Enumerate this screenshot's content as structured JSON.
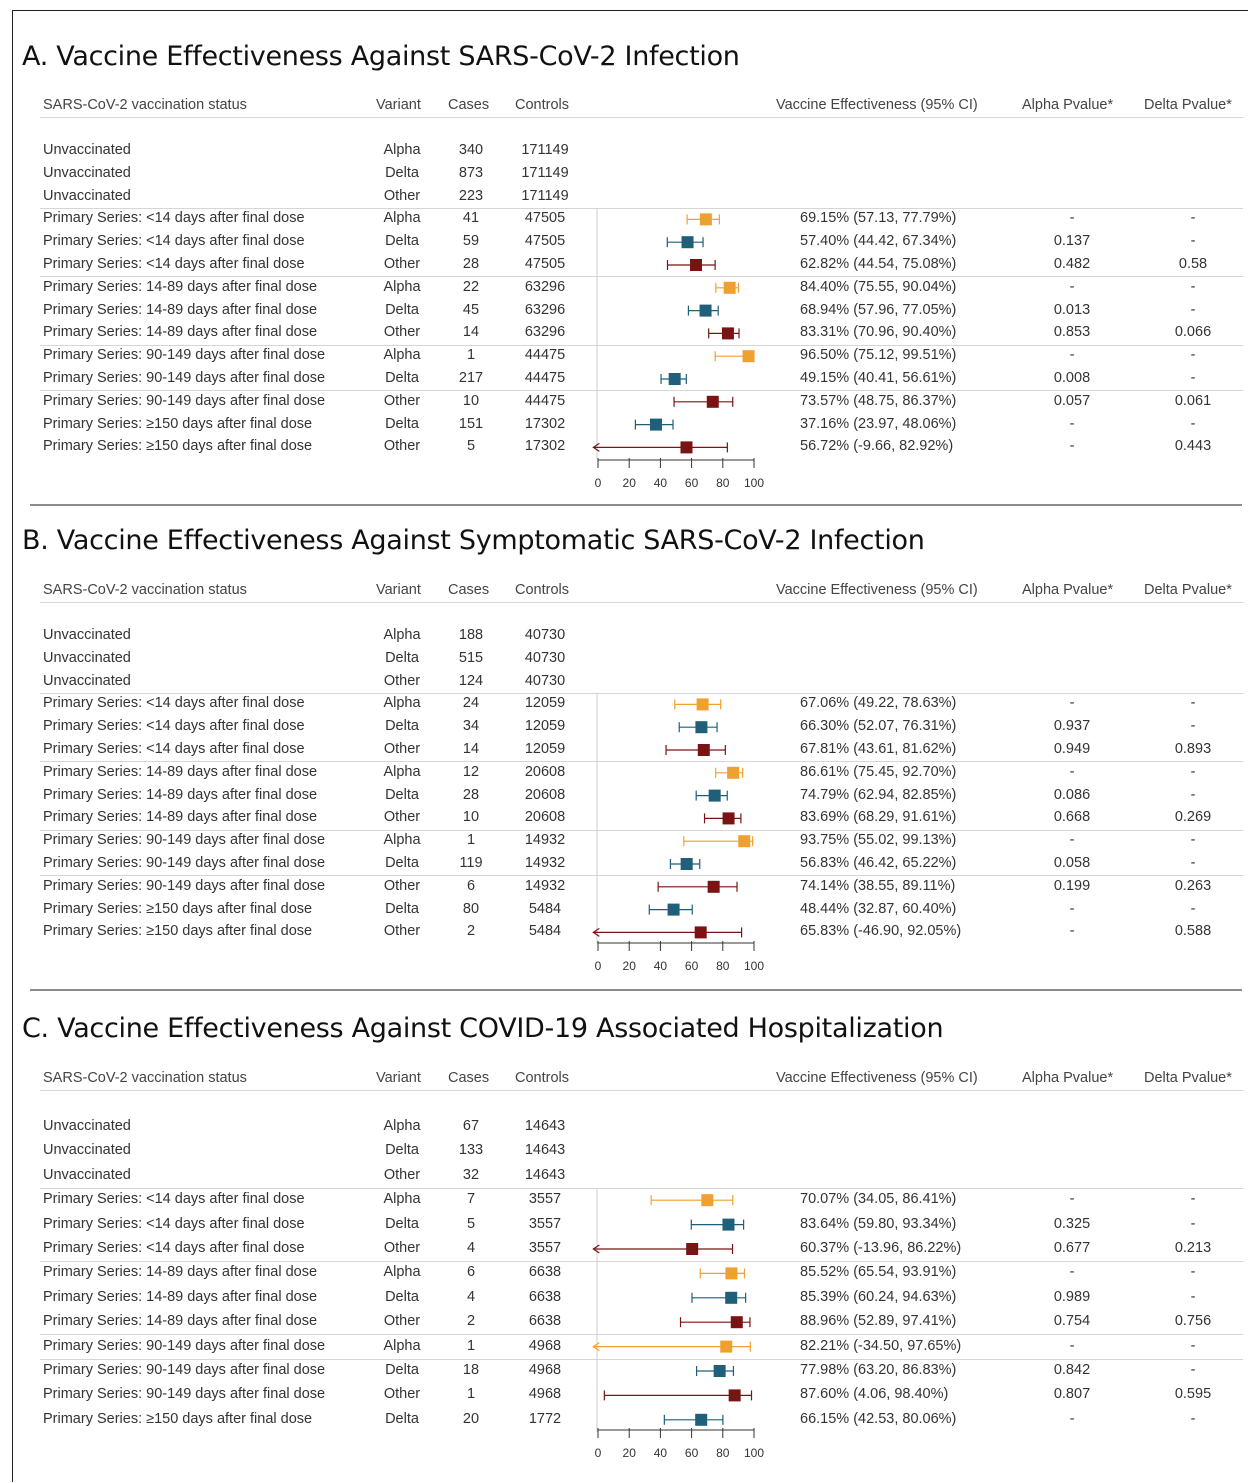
{
  "colors": {
    "Alpha": "#f0a030",
    "Delta": "#1f5f7a",
    "Other": "#7a1414",
    "axis": "#333333"
  },
  "headers": {
    "status": "SARS-CoV-2 vaccination status",
    "variant": "Variant",
    "cases": "Cases",
    "controls": "Controls",
    "ve": "Vaccine Effectiveness (95% CI)",
    "alpha_p": "Alpha Pvalue*",
    "delta_p": "Delta Pvalue*"
  },
  "panels": [
    {
      "title": "A. Vaccine Effectiveness Against SARS-CoV-2 Infection",
      "rows": [
        {
          "status": "Unvaccinated",
          "variant": "Alpha",
          "cases": "340",
          "controls": "171149",
          "ve": "",
          "pa": "",
          "pd": ""
        },
        {
          "status": "Unvaccinated",
          "variant": "Delta",
          "cases": "873",
          "controls": "171149",
          "ve": "",
          "pa": "",
          "pd": ""
        },
        {
          "status": "Unvaccinated",
          "variant": "Other",
          "cases": "223",
          "controls": "171149",
          "ve": "",
          "pa": "",
          "pd": ""
        },
        {
          "status": "Primary Series: <14 days after final dose",
          "variant": "Alpha",
          "cases": "41",
          "controls": "47505",
          "ve": "69.15% (57.13, 77.79%)",
          "pa": "-",
          "pd": "-"
        },
        {
          "status": "Primary Series: <14 days after final dose",
          "variant": "Delta",
          "cases": "59",
          "controls": "47505",
          "ve": "57.40% (44.42, 67.34%)",
          "pa": "0.137",
          "pd": "-"
        },
        {
          "status": "Primary Series: <14 days after final dose",
          "variant": "Other",
          "cases": "28",
          "controls": "47505",
          "ve": "62.82% (44.54, 75.08%)",
          "pa": "0.482",
          "pd": "0.58"
        },
        {
          "status": "Primary Series: 14-89 days after final dose",
          "variant": "Alpha",
          "cases": "22",
          "controls": "63296",
          "ve": "84.40% (75.55, 90.04%)",
          "pa": "-",
          "pd": "-"
        },
        {
          "status": "Primary Series: 14-89 days after final dose",
          "variant": "Delta",
          "cases": "45",
          "controls": "63296",
          "ve": "68.94% (57.96, 77.05%)",
          "pa": "0.013",
          "pd": "-"
        },
        {
          "status": "Primary Series: 14-89 days after final dose",
          "variant": "Other",
          "cases": "14",
          "controls": "63296",
          "ve": "83.31% (70.96, 90.40%)",
          "pa": "0.853",
          "pd": "0.066"
        },
        {
          "status": "Primary Series: 90-149 days after final dose",
          "variant": "Alpha",
          "cases": "1",
          "controls": "44475",
          "ve": "96.50% (75.12, 99.51%)",
          "pa": "-",
          "pd": "-"
        },
        {
          "status": "Primary Series: 90-149 days after final dose",
          "variant": "Delta",
          "cases": "217",
          "controls": "44475",
          "ve": "49.15% (40.41, 56.61%)",
          "pa": "0.008",
          "pd": "-"
        },
        {
          "status": "Primary Series: 90-149 days after final dose",
          "variant": "Other",
          "cases": "10",
          "controls": "44475",
          "ve": "73.57% (48.75, 86.37%)",
          "pa": "0.057",
          "pd": "0.061"
        },
        {
          "status": "Primary Series: ≥150 days after final dose",
          "variant": "Delta",
          "cases": "151",
          "controls": "17302",
          "ve": "37.16% (23.97, 48.06%)",
          "pa": "-",
          "pd": "-"
        },
        {
          "status": "Primary Series: ≥150 days after final dose",
          "variant": "Other",
          "cases": "5",
          "controls": "17302",
          "ve": "56.72% (-9.66, 82.92%)",
          "pa": "-",
          "pd": "0.443"
        }
      ]
    },
    {
      "title": "B. Vaccine Effectiveness Against Symptomatic SARS-CoV-2 Infection",
      "rows": [
        {
          "status": "Unvaccinated",
          "variant": "Alpha",
          "cases": "188",
          "controls": "40730",
          "ve": "",
          "pa": "",
          "pd": ""
        },
        {
          "status": "Unvaccinated",
          "variant": "Delta",
          "cases": "515",
          "controls": "40730",
          "ve": "",
          "pa": "",
          "pd": ""
        },
        {
          "status": "Unvaccinated",
          "variant": "Other",
          "cases": "124",
          "controls": "40730",
          "ve": "",
          "pa": "",
          "pd": ""
        },
        {
          "status": "Primary Series: <14 days after final dose",
          "variant": "Alpha",
          "cases": "24",
          "controls": "12059",
          "ve": "67.06% (49.22, 78.63%)",
          "pa": "-",
          "pd": "-"
        },
        {
          "status": "Primary Series: <14 days after final dose",
          "variant": "Delta",
          "cases": "34",
          "controls": "12059",
          "ve": "66.30% (52.07, 76.31%)",
          "pa": "0.937",
          "pd": "-"
        },
        {
          "status": "Primary Series: <14 days after final dose",
          "variant": "Other",
          "cases": "14",
          "controls": "12059",
          "ve": "67.81% (43.61, 81.62%)",
          "pa": "0.949",
          "pd": "0.893"
        },
        {
          "status": "Primary Series: 14-89 days after final dose",
          "variant": "Alpha",
          "cases": "12",
          "controls": "20608",
          "ve": "86.61% (75.45, 92.70%)",
          "pa": "-",
          "pd": "-"
        },
        {
          "status": "Primary Series: 14-89 days after final dose",
          "variant": "Delta",
          "cases": "28",
          "controls": "20608",
          "ve": "74.79% (62.94, 82.85%)",
          "pa": "0.086",
          "pd": "-"
        },
        {
          "status": "Primary Series: 14-89 days after final dose",
          "variant": "Other",
          "cases": "10",
          "controls": "20608",
          "ve": "83.69% (68.29, 91.61%)",
          "pa": "0.668",
          "pd": "0.269"
        },
        {
          "status": "Primary Series: 90-149 days after final dose",
          "variant": "Alpha",
          "cases": "1",
          "controls": "14932",
          "ve": "93.75% (55.02, 99.13%)",
          "pa": "-",
          "pd": "-"
        },
        {
          "status": "Primary Series: 90-149 days after final dose",
          "variant": "Delta",
          "cases": "119",
          "controls": "14932",
          "ve": "56.83% (46.42, 65.22%)",
          "pa": "0.058",
          "pd": "-"
        },
        {
          "status": "Primary Series: 90-149 days after final dose",
          "variant": "Other",
          "cases": "6",
          "controls": "14932",
          "ve": "74.14% (38.55, 89.11%)",
          "pa": "0.199",
          "pd": "0.263"
        },
        {
          "status": "Primary Series: ≥150 days after final dose",
          "variant": "Delta",
          "cases": "80",
          "controls": "5484",
          "ve": "48.44% (32.87, 60.40%)",
          "pa": "-",
          "pd": "-"
        },
        {
          "status": "Primary Series: ≥150 days after final dose",
          "variant": "Other",
          "cases": "2",
          "controls": "5484",
          "ve": "65.83% (-46.90, 92.05%)",
          "pa": "-",
          "pd": "0.588"
        }
      ]
    },
    {
      "title": "C. Vaccine Effectiveness Against COVID-19 Associated Hospitalization",
      "rows": [
        {
          "status": "Unvaccinated",
          "variant": "Alpha",
          "cases": "67",
          "controls": "14643",
          "ve": "",
          "pa": "",
          "pd": ""
        },
        {
          "status": "Unvaccinated",
          "variant": "Delta",
          "cases": "133",
          "controls": "14643",
          "ve": "",
          "pa": "",
          "pd": ""
        },
        {
          "status": "Unvaccinated",
          "variant": "Other",
          "cases": "32",
          "controls": "14643",
          "ve": "",
          "pa": "",
          "pd": ""
        },
        {
          "status": "Primary Series: <14 days after final dose",
          "variant": "Alpha",
          "cases": "7",
          "controls": "3557",
          "ve": "70.07% (34.05, 86.41%)",
          "pa": "-",
          "pd": "-"
        },
        {
          "status": "Primary Series: <14 days after final dose",
          "variant": "Delta",
          "cases": "5",
          "controls": "3557",
          "ve": "83.64% (59.80, 93.34%)",
          "pa": "0.325",
          "pd": "-"
        },
        {
          "status": "Primary Series: <14 days after final dose",
          "variant": "Other",
          "cases": "4",
          "controls": "3557",
          "ve": "60.37% (-13.96, 86.22%)",
          "pa": "0.677",
          "pd": "0.213"
        },
        {
          "status": "Primary Series: 14-89 days after final dose",
          "variant": "Alpha",
          "cases": "6",
          "controls": "6638",
          "ve": "85.52% (65.54, 93.91%)",
          "pa": "-",
          "pd": "-"
        },
        {
          "status": "Primary Series: 14-89 days after final dose",
          "variant": "Delta",
          "cases": "4",
          "controls": "6638",
          "ve": "85.39% (60.24, 94.63%)",
          "pa": "0.989",
          "pd": "-"
        },
        {
          "status": "Primary Series: 14-89 days after final dose",
          "variant": "Other",
          "cases": "2",
          "controls": "6638",
          "ve": "88.96% (52.89, 97.41%)",
          "pa": "0.754",
          "pd": "0.756"
        },
        {
          "status": "Primary Series: 90-149 days after final dose",
          "variant": "Alpha",
          "cases": "1",
          "controls": "4968",
          "ve": "82.21% (-34.50, 97.65%)",
          "pa": "-",
          "pd": "-"
        },
        {
          "status": "Primary Series: 90-149 days after final dose",
          "variant": "Delta",
          "cases": "18",
          "controls": "4968",
          "ve": "77.98% (63.20, 86.83%)",
          "pa": "0.842",
          "pd": "-"
        },
        {
          "status": "Primary Series: 90-149 days after final dose",
          "variant": "Other",
          "cases": "1",
          "controls": "4968",
          "ve": "87.60% (4.06, 98.40%)",
          "pa": "0.807",
          "pd": "0.595"
        },
        {
          "status": "Primary Series: ≥150 days after final dose",
          "variant": "Delta",
          "cases": "20",
          "controls": "1772",
          "ve": "66.15% (42.53, 80.06%)",
          "pa": "-",
          "pd": "-"
        }
      ]
    }
  ],
  "chart_data": [
    {
      "type": "scatter",
      "subtype": "forest-plot",
      "title": "A. Vaccine Effectiveness Against SARS-CoV-2 Infection",
      "xlim": [
        0,
        100
      ],
      "xticks": [
        0,
        20,
        40,
        60,
        80,
        100
      ],
      "points": [
        {
          "variant": "Alpha",
          "ve": 69.15,
          "lo": 57.13,
          "hi": 77.79
        },
        {
          "variant": "Delta",
          "ve": 57.4,
          "lo": 44.42,
          "hi": 67.34
        },
        {
          "variant": "Other",
          "ve": 62.82,
          "lo": 44.54,
          "hi": 75.08
        },
        {
          "variant": "Alpha",
          "ve": 84.4,
          "lo": 75.55,
          "hi": 90.04
        },
        {
          "variant": "Delta",
          "ve": 68.94,
          "lo": 57.96,
          "hi": 77.05
        },
        {
          "variant": "Other",
          "ve": 83.31,
          "lo": 70.96,
          "hi": 90.4
        },
        {
          "variant": "Alpha",
          "ve": 96.5,
          "lo": 75.12,
          "hi": 99.51
        },
        {
          "variant": "Delta",
          "ve": 49.15,
          "lo": 40.41,
          "hi": 56.61
        },
        {
          "variant": "Other",
          "ve": 73.57,
          "lo": 48.75,
          "hi": 86.37
        },
        {
          "variant": "Delta",
          "ve": 37.16,
          "lo": 23.97,
          "hi": 48.06
        },
        {
          "variant": "Other",
          "ve": 56.72,
          "lo": -9.66,
          "hi": 82.92
        }
      ]
    },
    {
      "type": "scatter",
      "subtype": "forest-plot",
      "title": "B. Vaccine Effectiveness Against Symptomatic SARS-CoV-2 Infection",
      "xlim": [
        0,
        100
      ],
      "xticks": [
        0,
        20,
        40,
        60,
        80,
        100
      ],
      "points": [
        {
          "variant": "Alpha",
          "ve": 67.06,
          "lo": 49.22,
          "hi": 78.63
        },
        {
          "variant": "Delta",
          "ve": 66.3,
          "lo": 52.07,
          "hi": 76.31
        },
        {
          "variant": "Other",
          "ve": 67.81,
          "lo": 43.61,
          "hi": 81.62
        },
        {
          "variant": "Alpha",
          "ve": 86.61,
          "lo": 75.45,
          "hi": 92.7
        },
        {
          "variant": "Delta",
          "ve": 74.79,
          "lo": 62.94,
          "hi": 82.85
        },
        {
          "variant": "Other",
          "ve": 83.69,
          "lo": 68.29,
          "hi": 91.61
        },
        {
          "variant": "Alpha",
          "ve": 93.75,
          "lo": 55.02,
          "hi": 99.13
        },
        {
          "variant": "Delta",
          "ve": 56.83,
          "lo": 46.42,
          "hi": 65.22
        },
        {
          "variant": "Other",
          "ve": 74.14,
          "lo": 38.55,
          "hi": 89.11
        },
        {
          "variant": "Delta",
          "ve": 48.44,
          "lo": 32.87,
          "hi": 60.4
        },
        {
          "variant": "Other",
          "ve": 65.83,
          "lo": -46.9,
          "hi": 92.05
        }
      ]
    },
    {
      "type": "scatter",
      "subtype": "forest-plot",
      "title": "C. Vaccine Effectiveness Against COVID-19 Associated Hospitalization",
      "xlim": [
        0,
        100
      ],
      "xticks": [
        0,
        20,
        40,
        60,
        80,
        100
      ],
      "points": [
        {
          "variant": "Alpha",
          "ve": 70.07,
          "lo": 34.05,
          "hi": 86.41
        },
        {
          "variant": "Delta",
          "ve": 83.64,
          "lo": 59.8,
          "hi": 93.34
        },
        {
          "variant": "Other",
          "ve": 60.37,
          "lo": -13.96,
          "hi": 86.22
        },
        {
          "variant": "Alpha",
          "ve": 85.52,
          "lo": 65.54,
          "hi": 93.91
        },
        {
          "variant": "Delta",
          "ve": 85.39,
          "lo": 60.24,
          "hi": 94.63
        },
        {
          "variant": "Other",
          "ve": 88.96,
          "lo": 52.89,
          "hi": 97.41
        },
        {
          "variant": "Alpha",
          "ve": 82.21,
          "lo": -34.5,
          "hi": 97.65
        },
        {
          "variant": "Delta",
          "ve": 77.98,
          "lo": 63.2,
          "hi": 86.83
        },
        {
          "variant": "Other",
          "ve": 87.6,
          "lo": 4.06,
          "hi": 98.4
        },
        {
          "variant": "Delta",
          "ve": 66.15,
          "lo": 42.53,
          "hi": 80.06
        }
      ]
    }
  ]
}
